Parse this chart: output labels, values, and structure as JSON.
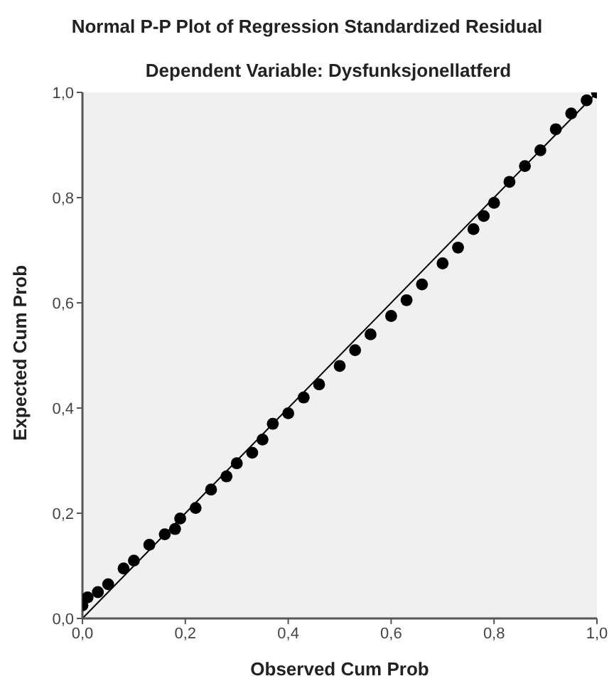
{
  "chart_data": {
    "type": "scatter",
    "title": "Normal P-P Plot of Regression Standardized Residual",
    "subtitle": "Dependent Variable: Dysfunksjonellatferd",
    "xlabel": "Observed Cum Prob",
    "ylabel": "Expected Cum Prob",
    "series": [
      {
        "color": "#000000",
        "marker": "circle",
        "x": [
          0.0,
          0.01,
          0.03,
          0.05,
          0.08,
          0.1,
          0.13,
          0.16,
          0.18,
          0.19,
          0.22,
          0.25,
          0.28,
          0.3,
          0.33,
          0.35,
          0.37,
          0.4,
          0.43,
          0.46,
          0.5,
          0.53,
          0.56,
          0.6,
          0.63,
          0.66,
          0.7,
          0.73,
          0.76,
          0.78,
          0.8,
          0.83,
          0.86,
          0.89,
          0.92,
          0.95,
          0.98,
          1.0
        ],
        "values": [
          0.025,
          0.04,
          0.05,
          0.065,
          0.095,
          0.11,
          0.14,
          0.16,
          0.17,
          0.19,
          0.21,
          0.245,
          0.27,
          0.295,
          0.315,
          0.34,
          0.37,
          0.39,
          0.42,
          0.445,
          0.48,
          0.51,
          0.54,
          0.575,
          0.605,
          0.635,
          0.675,
          0.705,
          0.74,
          0.765,
          0.79,
          0.83,
          0.86,
          0.89,
          0.93,
          0.96,
          0.985,
          1.0
        ]
      },
      {
        "type": "line",
        "color": "#000000",
        "marker": "none",
        "line_style": "solid",
        "x": [
          0,
          1
        ],
        "values": [
          0,
          1
        ]
      }
    ],
    "xlim": [
      0,
      1
    ],
    "ylim": [
      0,
      1
    ],
    "xticks": [
      {
        "value": 0,
        "label": "0,0"
      },
      {
        "value": 0.2,
        "label": "0,2"
      },
      {
        "value": 0.4,
        "label": "0,4"
      },
      {
        "value": 0.6,
        "label": "0,6"
      },
      {
        "value": 0.8,
        "label": "0,8"
      },
      {
        "value": 1,
        "label": "1,0"
      }
    ],
    "yticks": [
      {
        "value": 0,
        "label": "0,0"
      },
      {
        "value": 0.2,
        "label": "0,2"
      },
      {
        "value": 0.4,
        "label": "0,4"
      },
      {
        "value": 0.6,
        "label": "0,6"
      },
      {
        "value": 0.8,
        "label": "0,8"
      },
      {
        "value": 1,
        "label": "1,0"
      }
    ],
    "grid": false,
    "legend": false
  }
}
